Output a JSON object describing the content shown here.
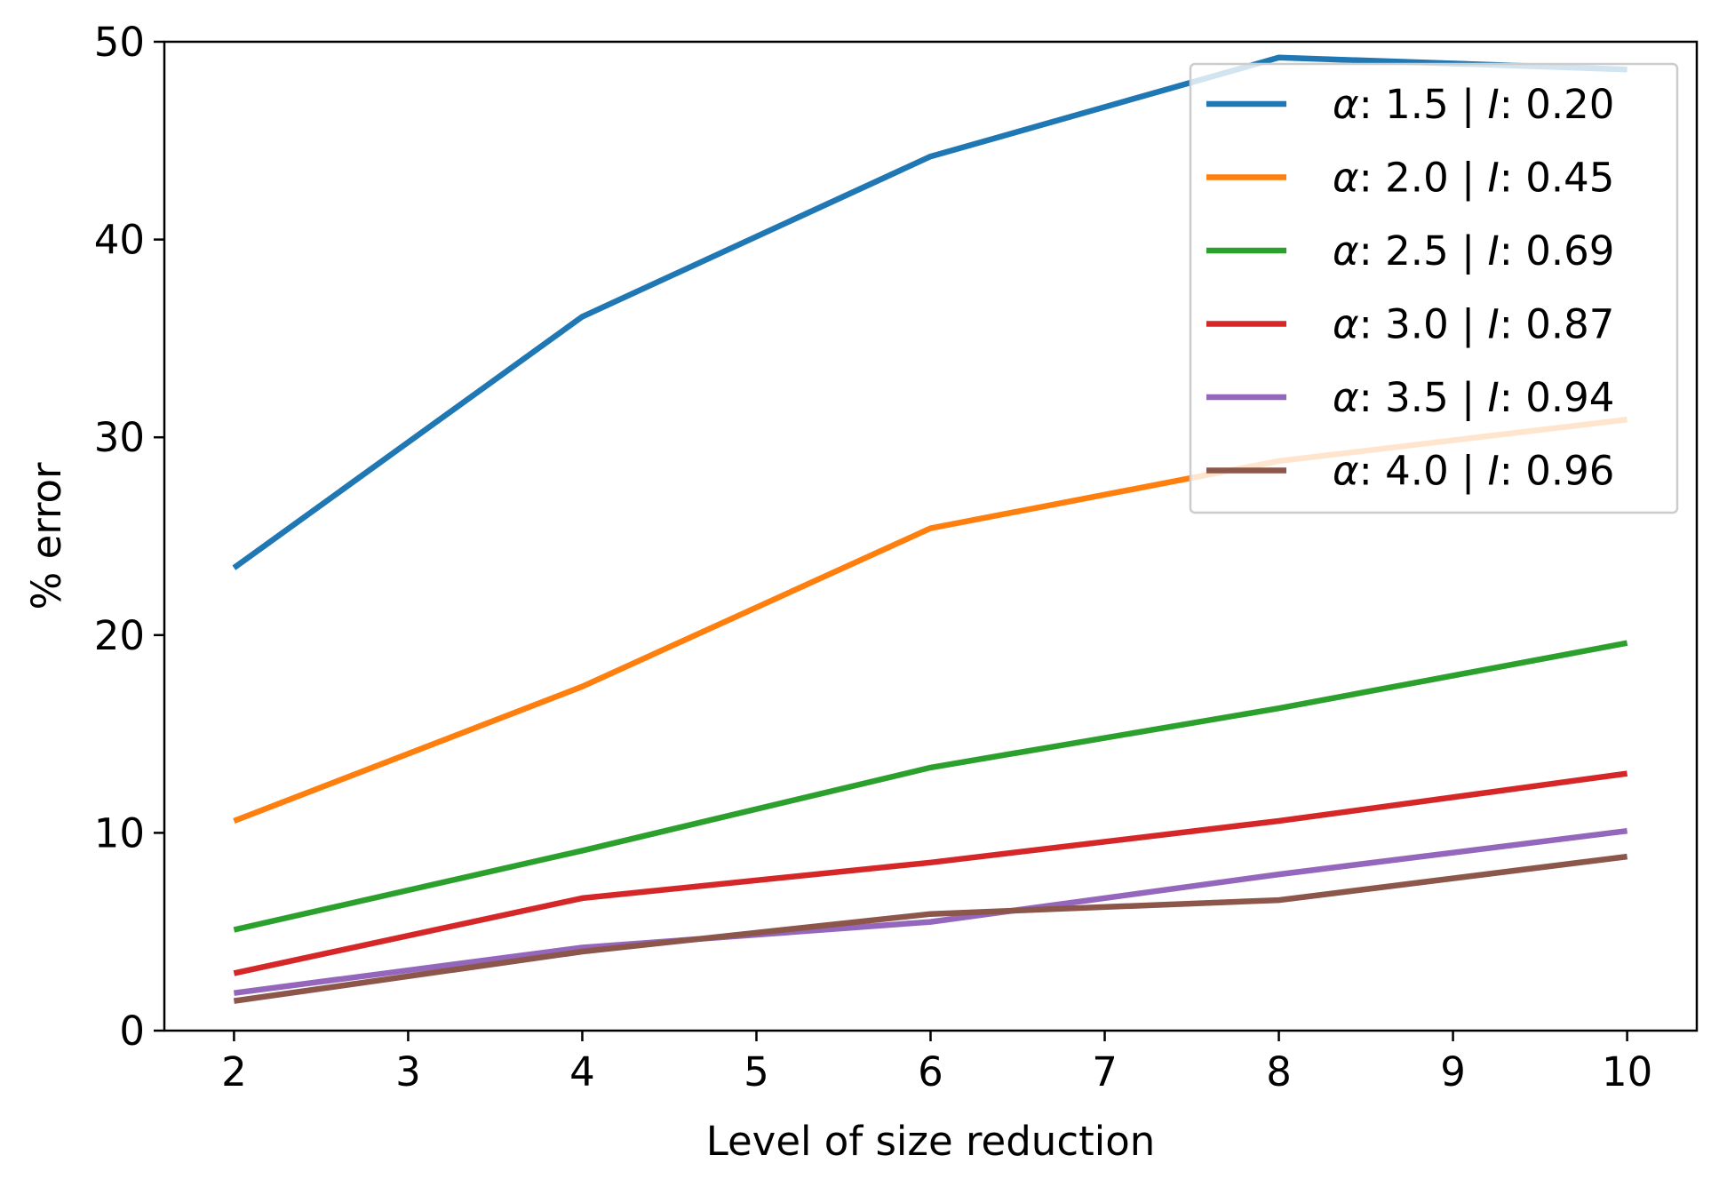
{
  "chart_data": {
    "type": "line",
    "title": "",
    "xlabel": "Level of size reduction",
    "ylabel": "% error",
    "x": [
      2,
      4,
      6,
      8,
      10
    ],
    "xlim": [
      1.6,
      10.4
    ],
    "ylim": [
      0,
      50
    ],
    "xticks": [
      "2",
      "3",
      "4",
      "5",
      "6",
      "7",
      "8",
      "9",
      "10"
    ],
    "yticks": [
      "0",
      "10",
      "20",
      "30",
      "40",
      "50"
    ],
    "grid": false,
    "legend_position": "top-right",
    "series": [
      {
        "name": "α: 1.5 | I: 0.20",
        "alpha": "1.5",
        "I": "0.20",
        "color": "#1f77b4",
        "values": [
          23.4,
          36.1,
          44.2,
          49.2,
          48.6
        ]
      },
      {
        "name": "α: 2.0 | I: 0.45",
        "alpha": "2.0",
        "I": "0.45",
        "color": "#ff7f0e",
        "values": [
          10.6,
          17.4,
          25.4,
          28.8,
          30.9
        ]
      },
      {
        "name": "α: 2.5 | I: 0.69",
        "alpha": "2.5",
        "I": "0.69",
        "color": "#2ca02c",
        "values": [
          5.1,
          9.1,
          13.3,
          16.3,
          19.6
        ]
      },
      {
        "name": "α: 3.0 | I: 0.87",
        "alpha": "3.0",
        "I": "0.87",
        "color": "#d62728",
        "values": [
          2.9,
          6.7,
          8.5,
          10.6,
          13.0
        ]
      },
      {
        "name": "α: 3.5 | I: 0.94",
        "alpha": "3.5",
        "I": "0.94",
        "color": "#9467bd",
        "values": [
          1.9,
          4.2,
          5.5,
          7.9,
          10.1
        ]
      },
      {
        "name": "α: 4.0 | I: 0.96",
        "alpha": "4.0",
        "I": "0.96",
        "color": "#8c564b",
        "values": [
          1.5,
          4.0,
          5.9,
          6.6,
          8.8
        ]
      }
    ]
  }
}
